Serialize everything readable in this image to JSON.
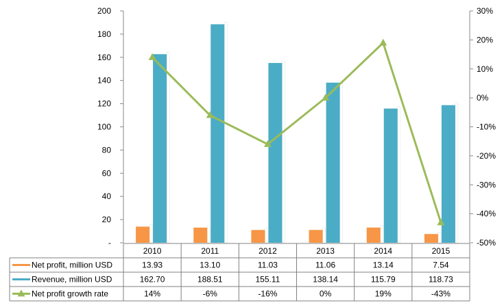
{
  "chart_data": {
    "type": "bar",
    "categories": [
      "2010",
      "2011",
      "2012",
      "2013",
      "2014",
      "2015"
    ],
    "y_left": {
      "ticks": [
        "-",
        "20",
        "40",
        "60",
        "80",
        "100",
        "120",
        "140",
        "160",
        "180",
        "200"
      ],
      "range": [
        0,
        200
      ]
    },
    "y_right": {
      "ticks": [
        "-50%",
        "-40%",
        "-30%",
        "-20%",
        "-10%",
        "0%",
        "10%",
        "20%",
        "30%"
      ],
      "range": [
        -50,
        30
      ]
    },
    "series": [
      {
        "name": "Net profit, million USD",
        "type": "bar",
        "axis": "left",
        "color": "#f79646",
        "values": [
          13.93,
          13.1,
          11.03,
          11.06,
          13.14,
          7.54
        ],
        "labels": [
          "13.93",
          "13.10",
          "11.03",
          "11.06",
          "13.14",
          "7.54"
        ]
      },
      {
        "name": "Revenue, million USD",
        "type": "bar",
        "axis": "left",
        "color": "#4bacc6",
        "values": [
          162.7,
          188.51,
          155.11,
          138.14,
          115.79,
          118.73
        ],
        "labels": [
          "162.70",
          "188.51",
          "155.11",
          "138.14",
          "115.79",
          "118.73"
        ]
      },
      {
        "name": "Net profit growth rate",
        "type": "line",
        "axis": "right",
        "color": "#9bbb59",
        "marker": "triangle",
        "values": [
          14,
          -6,
          -16,
          0,
          19,
          -43
        ],
        "labels": [
          "14%",
          "-6%",
          "-16%",
          "0%",
          "19%",
          "-43%"
        ]
      }
    ],
    "grid": false,
    "legend": "data-table-below"
  }
}
